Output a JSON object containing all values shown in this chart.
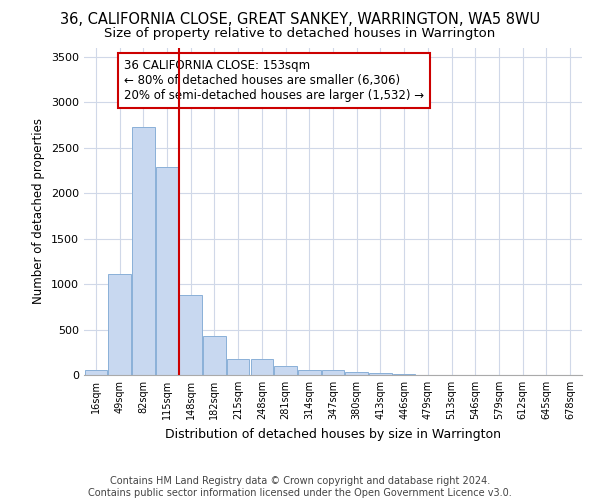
{
  "title": "36, CALIFORNIA CLOSE, GREAT SANKEY, WARRINGTON, WA5 8WU",
  "subtitle": "Size of property relative to detached houses in Warrington",
  "xlabel": "Distribution of detached houses by size in Warrington",
  "ylabel": "Number of detached properties",
  "categories": [
    "16sqm",
    "49sqm",
    "82sqm",
    "115sqm",
    "148sqm",
    "182sqm",
    "215sqm",
    "248sqm",
    "281sqm",
    "314sqm",
    "347sqm",
    "380sqm",
    "413sqm",
    "446sqm",
    "479sqm",
    "513sqm",
    "546sqm",
    "579sqm",
    "612sqm",
    "645sqm",
    "678sqm"
  ],
  "values": [
    55,
    1110,
    2730,
    2290,
    880,
    430,
    175,
    175,
    100,
    60,
    55,
    30,
    25,
    15,
    5,
    0,
    0,
    0,
    0,
    0,
    0
  ],
  "bar_color": "#c8d8f0",
  "bar_edge_color": "#8ab0d8",
  "vline_color": "#cc0000",
  "annotation_text": "36 CALIFORNIA CLOSE: 153sqm\n← 80% of detached houses are smaller (6,306)\n20% of semi-detached houses are larger (1,532) →",
  "annotation_box_color": "#ffffff",
  "annotation_box_edge_color": "#cc0000",
  "ylim": [
    0,
    3600
  ],
  "yticks": [
    0,
    500,
    1000,
    1500,
    2000,
    2500,
    3000,
    3500
  ],
  "footer_text": "Contains HM Land Registry data © Crown copyright and database right 2024.\nContains public sector information licensed under the Open Government Licence v3.0.",
  "bg_color": "#ffffff",
  "grid_color": "#d0d8e8",
  "title_fontsize": 10.5,
  "subtitle_fontsize": 9.5,
  "annotation_fontsize": 8.5,
  "footer_fontsize": 7.0
}
